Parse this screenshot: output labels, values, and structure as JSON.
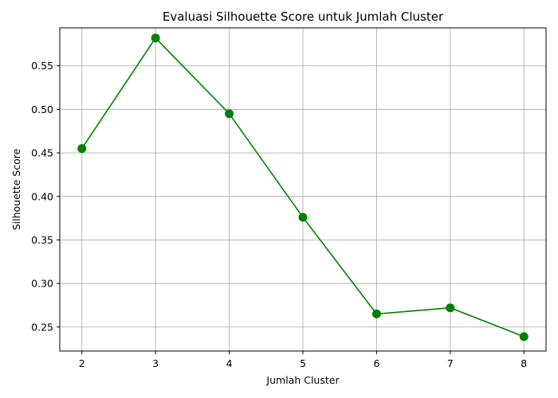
{
  "chart_data": {
    "type": "line",
    "title": "Evaluasi Silhouette Score untuk Jumlah Cluster",
    "xlabel": "Jumlah Cluster",
    "ylabel": "Silhouette Score",
    "x": [
      2,
      3,
      4,
      5,
      6,
      7,
      8
    ],
    "series": [
      {
        "values": [
          0.455,
          0.582,
          0.495,
          0.376,
          0.265,
          0.272,
          0.239
        ]
      }
    ],
    "xticks": [
      "2",
      "3",
      "4",
      "5",
      "6",
      "7",
      "8"
    ],
    "yticks": [
      "0.25",
      "0.30",
      "0.35",
      "0.40",
      "0.45",
      "0.50",
      "0.55"
    ],
    "xlim": [
      1.7,
      8.3
    ],
    "ylim": [
      0.2224,
      0.5936
    ],
    "grid": true,
    "line_color": "#008000",
    "grid_color": "#b0b0b0",
    "marker": "circle"
  }
}
